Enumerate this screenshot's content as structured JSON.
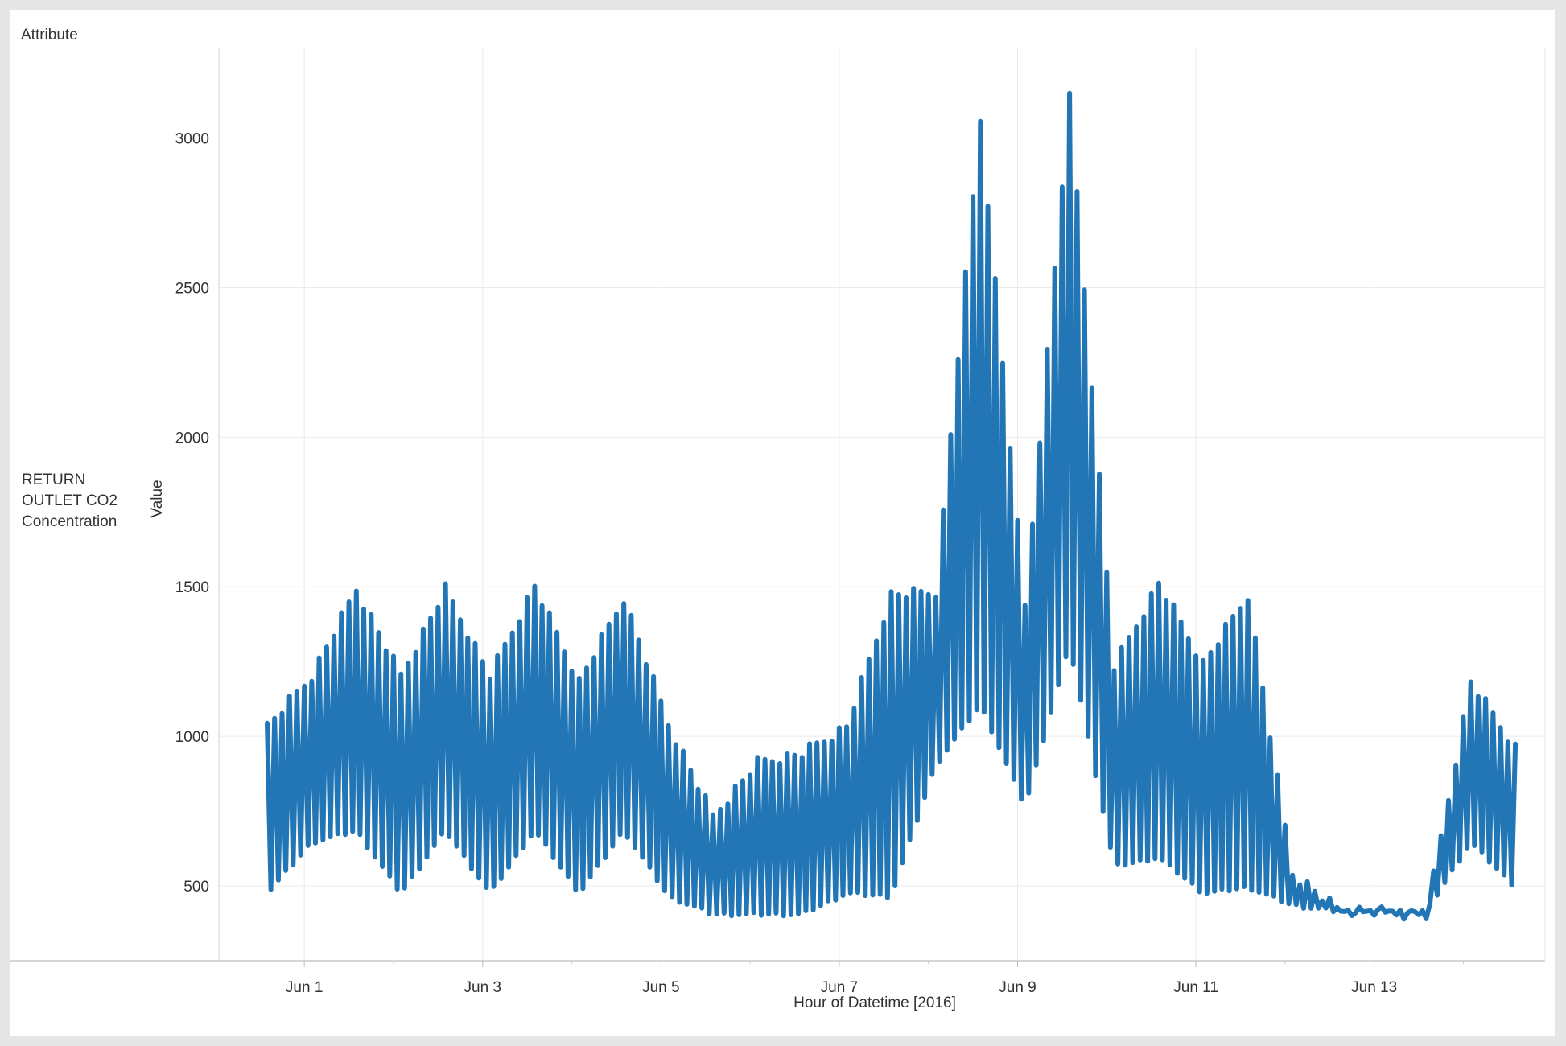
{
  "header": {
    "title": "Attribute"
  },
  "row_label": "RETURN OUTLET CO2 Concentration",
  "chart_data": {
    "type": "line",
    "title": "",
    "xlabel": "Hour of Datetime [2016]",
    "ylabel": "Value",
    "row_dimension": "Attribute",
    "row_member": "RETURN OUTLET CO2 Concentration",
    "x_tick_labels": [
      "Jun 1",
      "Jun 3",
      "Jun 5",
      "Jun 7",
      "Jun 9",
      "Jun 11",
      "Jun 13"
    ],
    "y_ticks": [
      500,
      1000,
      1500,
      2000,
      2500,
      3000
    ],
    "xlim": [
      "2016-05-31T01:00",
      "2016-06-14T22:00"
    ],
    "ylim": [
      250,
      3300
    ],
    "grid": true,
    "legend": "none",
    "line_color": "#2276b5",
    "series": [
      {
        "x_start": "2016-05-31T14:00",
        "x_end": "2016-06-14T14:00",
        "sampling": "hourly",
        "description_points": {
          "x": [
            "2016-05-31T14:00",
            "2016-06-01T02:00",
            "2016-06-01T14:00",
            "2016-06-02T02:00",
            "2016-06-02T14:00",
            "2016-06-03T02:00",
            "2016-06-03T14:00",
            "2016-06-04T02:00",
            "2016-06-04T14:00",
            "2016-06-05T02:00",
            "2016-06-05T14:00",
            "2016-06-06T02:00",
            "2016-06-06T14:00",
            "2016-06-07T02:00",
            "2016-06-07T14:00",
            "2016-06-08T02:00",
            "2016-06-08T14:00",
            "2016-06-09T02:00",
            "2016-06-09T14:00",
            "2016-06-10T02:00",
            "2016-06-10T14:00",
            "2016-06-11T02:00",
            "2016-06-11T14:00",
            "2016-06-12T02:00",
            "2016-06-12T14:00",
            "2016-06-13T02:00",
            "2016-06-13T14:00",
            "2016-06-14T02:00",
            "2016-06-14T14:00"
          ],
          "upper": [
            1050,
            1220,
            1510,
            1220,
            1510,
            1220,
            1520,
            1200,
            1480,
            1060,
            750,
            930,
            960,
            1050,
            1490,
            1500,
            3080,
            1450,
            3150,
            1250,
            1530,
            1260,
            1490,
            560,
            440,
            430,
            420,
            1200,
            980
          ],
          "lower": [
            470,
            640,
            680,
            470,
            680,
            470,
            680,
            470,
            680,
            460,
            400,
            400,
            400,
            470,
            460,
            900,
            1100,
            760,
            1300,
            560,
            590,
            470,
            490,
            430,
            410,
            410,
            410,
            640,
            490
          ]
        }
      }
    ]
  }
}
